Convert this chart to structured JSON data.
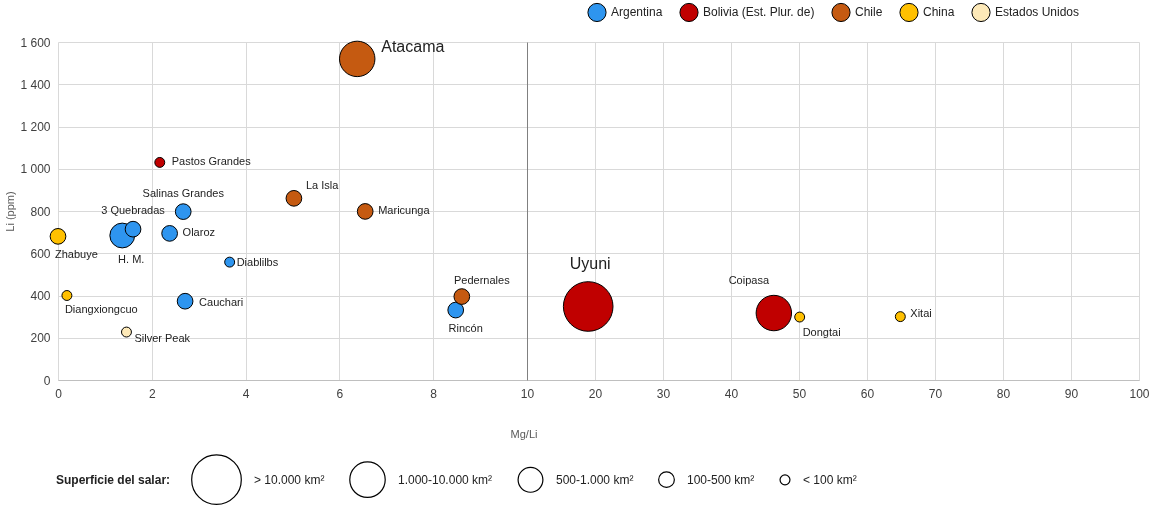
{
  "chart_data": [
    {
      "type": "bubble",
      "xlabel": "Mg/Li",
      "ylabel": "Li (ppm)",
      "xlim": [
        0,
        10
      ],
      "xticks": [
        0,
        2,
        4,
        6,
        8
      ],
      "ylim": [
        0,
        1600
      ],
      "yticks": [
        0,
        200,
        400,
        600,
        800,
        {
          "value": 1000,
          "label": "1 000"
        },
        {
          "value": 1200,
          "label": "1 200"
        },
        {
          "value": 1400,
          "label": "1 400"
        },
        {
          "value": 1600,
          "label": "1 600"
        }
      ],
      "grid": true,
      "legend": "top right",
      "size_legend": [
        {
          "value": 1,
          "label": "> 10.000 km²"
        },
        {
          "value": 0.51,
          "label": "1.000-10.000 km²"
        },
        {
          "value": 0.25,
          "label": "500-1.000 km²"
        },
        {
          "value": 0.1,
          "label": "100-500 km²"
        },
        {
          "value": 0.04,
          "label": "< 100 km²"
        }
      ],
      "series": [
        {
          "name": "Argentina",
          "color": "#2e95ef",
          "x": [
            1.37,
            1.6,
            2.67,
            2.38,
            3.66,
            2.71,
            8.48
          ],
          "values": [
            684,
            714,
            797,
            694,
            558,
            373,
            331
          ],
          "sizes": [
            0.25,
            0.1,
            0.1,
            0.1,
            0.04,
            0.1,
            0.1
          ]
        },
        {
          "name": "Bolivia (Est. Plur. de)",
          "color": "#c00000",
          "x": [
            2.17
          ],
          "values": [
            1030
          ],
          "sizes": [
            0.04
          ]
        },
        {
          "name": "Chile",
          "color": "#c55a11",
          "x": [
            6.38,
            5.03,
            6.55,
            8.61
          ],
          "values": [
            1520,
            860,
            798,
            395
          ],
          "sizes": [
            0.51,
            0.1,
            0.1,
            0.1
          ]
        },
        {
          "name": "China",
          "color": "#ffc000",
          "x": [
            0,
            0.19
          ],
          "values": [
            680,
            400
          ],
          "sizes": [
            0.1,
            0.04
          ]
        },
        {
          "name": "Estados Unidos",
          "color": "#fde9b8",
          "x": [
            1.46
          ],
          "values": [
            227
          ],
          "sizes": [
            0.04
          ]
        }
      ],
      "annotations": [
        {
          "text": "Atacama",
          "x": 6.38,
          "y": 1520
        },
        {
          "text": "Pastos Grandes",
          "x": 2.17,
          "y": 1030
        },
        {
          "text": "Salinas Grandes",
          "x": 2.67,
          "y": 797
        },
        {
          "text": "La Isla",
          "x": 5.03,
          "y": 860
        },
        {
          "text": "3 Quebradas",
          "x": 1.6,
          "y": 714
        },
        {
          "text": "Maricunga",
          "x": 6.55,
          "y": 798
        },
        {
          "text": "Zhabuye",
          "x": 0,
          "y": 680
        },
        {
          "text": "Olaroz",
          "x": 2.38,
          "y": 694
        },
        {
          "text": "H. M.",
          "x": 1.37,
          "y": 684
        },
        {
          "text": "Diablilbs",
          "x": 3.66,
          "y": 558
        },
        {
          "text": "Pedernales",
          "x": 8.61,
          "y": 395
        },
        {
          "text": "Diangxiongcuo",
          "x": 0.19,
          "y": 400
        },
        {
          "text": "Cauchari",
          "x": 2.71,
          "y": 373
        },
        {
          "text": "Rincón",
          "x": 8.48,
          "y": 331
        },
        {
          "text": "Silver Peak",
          "x": 1.46,
          "y": 227
        },
        "Superficie del salar:"
      ]
    },
    {
      "type": "bubble",
      "xlim": [
        10,
        100
      ],
      "xticks": [
        10,
        20,
        30,
        40,
        50,
        60,
        70,
        80,
        90,
        100
      ],
      "ylim": [
        0,
        1600
      ],
      "yticks": [
        0,
        200,
        400,
        600,
        800,
        1000,
        1200,
        1400,
        1600
      ],
      "grid": true,
      "tick_labels": "x",
      "series": [
        {
          "name": "Bolivia (Est. Plur. de)",
          "color": "#c00000",
          "x": [
            19.0,
            46.3
          ],
          "values": [
            348,
            317
          ],
          "sizes": [
            1,
            0.51
          ]
        },
        {
          "name": "China",
          "color": "#ffc000",
          "x": [
            50.1,
            64.9
          ],
          "values": [
            298,
            300
          ],
          "sizes": [
            0.04,
            0.04
          ]
        }
      ],
      "annotations": [
        {
          "text": "Uyuni",
          "x": 19.0,
          "y": 348
        },
        {
          "text": "Coipasa",
          "x": 46.3,
          "y": 317
        },
        {
          "text": "Dongtai",
          "x": 50.1,
          "y": 298
        },
        {
          "text": "Xitai",
          "x": 64.9,
          "y": 300
        }
      ]
    }
  ]
}
